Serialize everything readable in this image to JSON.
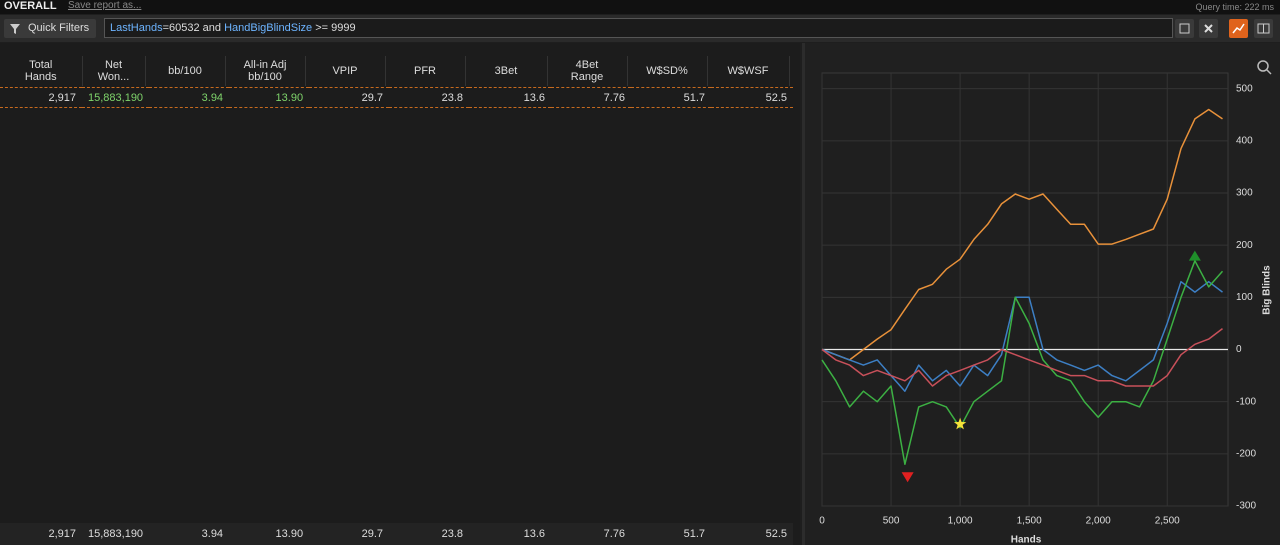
{
  "header": {
    "title": "OVERALL",
    "save_link": "Save report as...",
    "query_time": "Query time: 222 ms"
  },
  "filter": {
    "label": "Quick Filters",
    "parts": [
      "LastHands",
      "=60532 and ",
      "HandBigBlindSize",
      " >= 9999"
    ]
  },
  "table": {
    "columns": [
      [
        "Total",
        "Hands"
      ],
      [
        "Net",
        "Won..."
      ],
      [
        "bb/100"
      ],
      [
        "All-in Adj",
        "bb/100"
      ],
      [
        "VPIP"
      ],
      [
        "PFR"
      ],
      [
        "3Bet"
      ],
      [
        "4Bet",
        "Range"
      ],
      [
        "W$SD%"
      ],
      [
        "W$WSF"
      ]
    ],
    "rows": [
      [
        "2,917",
        "15,883,190",
        "3.94",
        "13.90",
        "29.7",
        "23.8",
        "13.6",
        "7.76",
        "51.7",
        "52.5"
      ]
    ],
    "totals": [
      "2,917",
      "15,883,190",
      "3.94",
      "13.90",
      "29.7",
      "23.8",
      "13.6",
      "7.76",
      "51.7",
      "52.5"
    ]
  },
  "chart_data": {
    "type": "line",
    "xlabel": "Hands",
    "ylabel": "Big Blinds",
    "x": [
      0,
      100,
      200,
      300,
      400,
      500,
      600,
      700,
      800,
      900,
      1000,
      1100,
      1200,
      1300,
      1400,
      1500,
      1600,
      1700,
      1800,
      1900,
      2000,
      2100,
      2200,
      2300,
      2400,
      2500,
      2600,
      2700,
      2800,
      2900
    ],
    "series": [
      {
        "color": "#e8913a",
        "values": [
          0,
          -10,
          -20,
          0,
          20,
          38,
          77,
          115,
          125,
          154,
          173,
          211,
          240,
          279,
          298,
          288,
          298,
          269,
          240,
          240,
          202,
          202,
          211,
          221,
          231,
          288,
          385,
          442,
          460,
          442
        ]
      },
      {
        "color": "#3d7fc4",
        "values": [
          0,
          -10,
          -20,
          -30,
          -20,
          -50,
          -80,
          -30,
          -60,
          -40,
          -70,
          -30,
          -50,
          -10,
          100,
          100,
          0,
          -20,
          -30,
          -40,
          -30,
          -50,
          -60,
          -40,
          -20,
          50,
          130,
          110,
          130,
          110
        ]
      },
      {
        "color": "#3cb043",
        "values": [
          -20,
          -60,
          -110,
          -80,
          -100,
          -70,
          -220,
          -110,
          -100,
          -110,
          -150,
          -100,
          -80,
          -60,
          100,
          50,
          -20,
          -50,
          -60,
          -100,
          -130,
          -100,
          -100,
          -110,
          -60,
          20,
          100,
          170,
          120,
          150
        ]
      },
      {
        "color": "#c8505a",
        "values": [
          0,
          -20,
          -30,
          -50,
          -40,
          -50,
          -60,
          -40,
          -70,
          -50,
          -40,
          -30,
          -20,
          0,
          -10,
          -20,
          -30,
          -40,
          -50,
          -50,
          -60,
          -60,
          -70,
          -70,
          -70,
          -50,
          -10,
          10,
          20,
          40
        ]
      }
    ],
    "markers": [
      {
        "x": 620,
        "y": -245,
        "shape": "triangle-down",
        "color": "#e02020"
      },
      {
        "x": 1000,
        "y": -143,
        "shape": "star",
        "color": "#f5e23a"
      },
      {
        "x": 2700,
        "y": 180,
        "shape": "triangle-up",
        "color": "#1f8f2a"
      }
    ],
    "xlim": [
      0,
      2940
    ],
    "ylim": [
      -300,
      530
    ],
    "xticks": [
      0,
      500,
      {
        "value": 1000,
        "label": "1,000"
      },
      {
        "value": 1500,
        "label": "1,500"
      },
      {
        "value": 2000,
        "label": "2,000"
      },
      {
        "value": 2500,
        "label": "2,500"
      }
    ],
    "yticks": [
      -300,
      -200,
      -100,
      0,
      100,
      200,
      300,
      400,
      500
    ],
    "grid": true,
    "zero_line": true
  }
}
